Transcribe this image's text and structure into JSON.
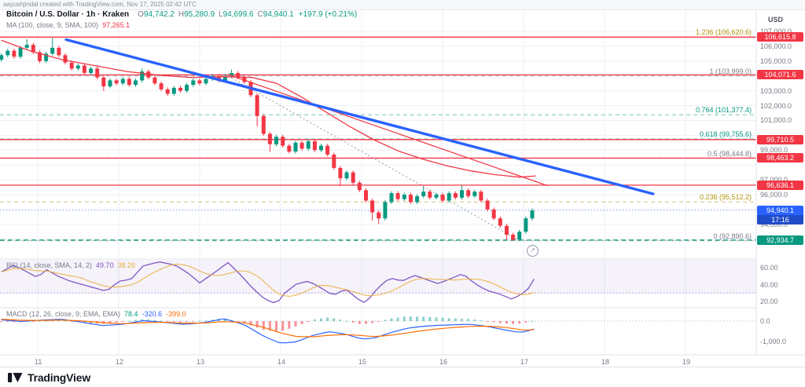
{
  "attribution": {
    "text": "aayushjindal created with TradingView.com, Nov 17, 2025 02:42 UTC"
  },
  "header": {
    "symbol_title": "Bitcoin / U.S. Dollar · 1h · Kraken",
    "ohlc": {
      "o_label": "O",
      "o": "94,742.2",
      "h_label": "H",
      "h": "95,280.9",
      "l_label": "L",
      "l": "94,699.6",
      "c_label": "C",
      "c": "94,940.1",
      "change": "+197.9 (+0.21%)"
    },
    "ma_legend": {
      "label": "MA (100, close, 9, SMA, 100)",
      "value": "97,265.1"
    }
  },
  "panes": {
    "rsi": {
      "legend": "RSI (14, close, SMA, 14, 2)",
      "values": [
        {
          "text": "49.70",
          "color": "#7e57c2"
        },
        {
          "text": "38.26",
          "color": "#edb041"
        }
      ]
    },
    "macd": {
      "legend": "MACD (12, 26, close, 9, EMA, EMA)",
      "values": [
        {
          "text": "78.4",
          "color": "#089981"
        },
        {
          "text": "-320.6",
          "color": "#2962ff"
        },
        {
          "text": "-399.0",
          "color": "#ff6d00"
        }
      ]
    }
  },
  "y_axis": {
    "currency": "USD",
    "labels": [
      {
        "text": "107,000.0",
        "price": 107000
      },
      {
        "text": "106,000.0",
        "price": 106000
      },
      {
        "text": "105,000.0",
        "price": 105000
      },
      {
        "text": "103,000.0",
        "price": 103000
      },
      {
        "text": "102,000.0",
        "price": 102000
      },
      {
        "text": "101,000.0",
        "price": 101000
      },
      {
        "text": "99,000.0",
        "price": 99000
      },
      {
        "text": "97,000.0",
        "price": 97000
      },
      {
        "text": "96,000.0",
        "price": 96000
      },
      {
        "text": "94,000.0",
        "price": 94000
      }
    ]
  },
  "rsi_scale": [
    {
      "text": "60.00",
      "value": 60
    },
    {
      "text": "40.00",
      "value": 40
    },
    {
      "text": "20.00",
      "value": 20
    }
  ],
  "macd_scale": [
    {
      "text": "0.0",
      "value": 0
    },
    {
      "text": "-1,000.0",
      "value": -1000
    }
  ],
  "time_axis": {
    "labels": [
      {
        "text": "11",
        "day": 11
      },
      {
        "text": "12",
        "day": 12
      },
      {
        "text": "13",
        "day": 13
      },
      {
        "text": "14",
        "day": 14
      },
      {
        "text": "15",
        "day": 15
      },
      {
        "text": "16",
        "day": 16
      },
      {
        "text": "17",
        "day": 17
      },
      {
        "text": "18",
        "day": 18
      },
      {
        "text": "19",
        "day": 19
      }
    ]
  },
  "footer": {
    "brand": "TradingView"
  },
  "marker_glyph": "↗",
  "chart_data": {
    "type": "candlestick",
    "title": "Bitcoin / U.S. Dollar · 1h · Kraken",
    "symbol": "BTC/USD",
    "interval": "1h",
    "exchange": "Kraken",
    "last_ohlc": {
      "open": 94742.2,
      "high": 95280.9,
      "low": 94699.6,
      "close": 94940.1,
      "change": 197.9,
      "change_pct": 0.21
    },
    "x_axis_days": [
      11,
      12,
      13,
      14,
      15,
      16,
      17,
      18,
      19
    ],
    "y_range": [
      91700,
      107500
    ],
    "candles": {
      "start_day": 10.55,
      "step_day": 0.079,
      "open_first": 105100,
      "wick_margin": 130,
      "closes": [
        105400,
        105700,
        105300,
        105900,
        106100,
        105600,
        105000,
        105500,
        105900,
        105400,
        104900,
        104500,
        104700,
        104200,
        104500,
        103900,
        103300,
        103700,
        103500,
        103800,
        103400,
        103700,
        104300,
        103900,
        103500,
        103100,
        102800,
        103200,
        103000,
        103400,
        103700,
        103500,
        103800,
        104000,
        103700,
        104000,
        104200,
        103900,
        103600,
        102700,
        101300,
        100100,
        99400,
        99900,
        99300,
        98900,
        99500,
        99100,
        99600,
        99000,
        99300,
        98700,
        97800,
        97100,
        97500,
        96800,
        96300,
        95600,
        94800,
        94400,
        95500,
        96100,
        95700,
        96000,
        95500,
        95900,
        96200,
        95800,
        96000,
        95600,
        96100,
        95800,
        96300,
        95900,
        96200,
        95600,
        95000,
        94400,
        93900,
        93300,
        92960,
        93500,
        94400,
        94940
      ],
      "wick_overrides": {
        "4": {
          "high": 106480
        },
        "8": {
          "high": 106560
        },
        "16": {
          "low": 102980
        },
        "22": {
          "high": 104500
        },
        "36": {
          "high": 104430
        },
        "40": {
          "low": 100600
        },
        "42": {
          "low": 98880
        },
        "53": {
          "low": 96580
        },
        "58": {
          "low": 94250
        },
        "59": {
          "low": 94020
        },
        "66": {
          "high": 96560
        },
        "72": {
          "high": 96600
        },
        "79": {
          "low": 92950
        },
        "80": {
          "low": 92890
        },
        "81": {
          "low": 92900
        }
      },
      "up_color": "#089981",
      "down_color": "#f23645"
    },
    "price_lines": [
      {
        "price": 106615.8,
        "label": "106,615.8",
        "color": "#f23645",
        "style": "solid"
      },
      {
        "price": 104071.6,
        "label": "104,071.6",
        "color": "#f23645",
        "style": "solid"
      },
      {
        "price": 99710.5,
        "label": "99,710.5",
        "color": "#f23645",
        "style": "solid"
      },
      {
        "price": 98463.2,
        "label": "98,463.2",
        "color": "#f23645",
        "style": "solid"
      },
      {
        "price": 96636.1,
        "label": "96,636.1",
        "color": "#f23645",
        "style": "solid"
      },
      {
        "price": 92934.7,
        "label": "92,934.7",
        "color": "#089981",
        "style": "dashed"
      }
    ],
    "last_price": {
      "price": 94940.1,
      "label": "94,940.1",
      "countdown": "17:16",
      "color": "#2962ff"
    },
    "fib_levels": [
      {
        "text": "1.236 (106,620.6)",
        "level": 1.236,
        "price": 106620.6,
        "color": "#b5940a"
      },
      {
        "text": "1 (103,999.0)",
        "level": 1,
        "price": 103999.0,
        "color": "#787b86"
      },
      {
        "text": "0.764 (101,377.4)",
        "level": 0.764,
        "price": 101377.4,
        "color": "#089981"
      },
      {
        "text": "0.618 (99,755.6)",
        "level": 0.618,
        "price": 99755.6,
        "color": "#089981"
      },
      {
        "text": "0.5 (98,444.8)",
        "level": 0.5,
        "price": 98444.8,
        "color": "#787b86"
      },
      {
        "text": "0.236 (95,512.2)",
        "level": 0.236,
        "price": 95512.2,
        "color": "#b5940a"
      },
      {
        "text": "0 (92,890.6)",
        "level": 0,
        "price": 92890.6,
        "color": "#787b86"
      }
    ],
    "fib_baseline": {
      "from": [
        13.35,
        103999.0
      ],
      "to": [
        16.95,
        92890.6
      ]
    },
    "trendline_blue": {
      "from": [
        11.35,
        106450
      ],
      "to": [
        18.6,
        96050
      ],
      "color": "#2962ff"
    },
    "trendline_red": {
      "from": [
        13.35,
        104100
      ],
      "to": [
        17.3,
        96600
      ],
      "color": "#f23645"
    },
    "ma100": [
      [
        10.55,
        106400
      ],
      [
        10.9,
        105700
      ],
      [
        11.3,
        105100
      ],
      [
        11.7,
        104700
      ],
      [
        12.1,
        104300
      ],
      [
        12.5,
        104050
      ],
      [
        12.9,
        103900
      ],
      [
        13.3,
        103950
      ],
      [
        13.65,
        103900
      ],
      [
        13.95,
        103500
      ],
      [
        14.25,
        102600
      ],
      [
        14.55,
        101600
      ],
      [
        14.85,
        100600
      ],
      [
        15.15,
        99700
      ],
      [
        15.45,
        98950
      ],
      [
        15.75,
        98400
      ],
      [
        16.05,
        97950
      ],
      [
        16.35,
        97600
      ],
      [
        16.65,
        97350
      ],
      [
        16.95,
        97180
      ],
      [
        17.15,
        97265
      ]
    ],
    "rsi": {
      "last": 49.7,
      "band": [
        70,
        30
      ],
      "points": [
        [
          10.55,
          55
        ],
        [
          10.7,
          63
        ],
        [
          10.85,
          56
        ],
        [
          11.0,
          48
        ],
        [
          11.1,
          58
        ],
        [
          11.25,
          50
        ],
        [
          11.4,
          44
        ],
        [
          11.55,
          40
        ],
        [
          11.7,
          36
        ],
        [
          11.85,
          32
        ],
        [
          12.0,
          44
        ],
        [
          12.15,
          46
        ],
        [
          12.3,
          62
        ],
        [
          12.5,
          67
        ],
        [
          12.7,
          63
        ],
        [
          12.85,
          54
        ],
        [
          13.0,
          42
        ],
        [
          13.15,
          52
        ],
        [
          13.35,
          66
        ],
        [
          13.5,
          52
        ],
        [
          13.65,
          36
        ],
        [
          13.8,
          23
        ],
        [
          13.95,
          17
        ],
        [
          14.05,
          30
        ],
        [
          14.2,
          41
        ],
        [
          14.35,
          44
        ],
        [
          14.5,
          36
        ],
        [
          14.65,
          27
        ],
        [
          14.8,
          35
        ],
        [
          14.95,
          23
        ],
        [
          15.05,
          18
        ],
        [
          15.2,
          36
        ],
        [
          15.35,
          48
        ],
        [
          15.5,
          44
        ],
        [
          15.65,
          51
        ],
        [
          15.8,
          46
        ],
        [
          15.95,
          41
        ],
        [
          16.1,
          47
        ],
        [
          16.25,
          53
        ],
        [
          16.4,
          41
        ],
        [
          16.55,
          33
        ],
        [
          16.7,
          29
        ],
        [
          16.85,
          23
        ],
        [
          16.95,
          27
        ],
        [
          17.05,
          34
        ],
        [
          17.15,
          49.7
        ]
      ]
    },
    "macd": {
      "last": {
        "hist": 78.4,
        "macd": -320.6,
        "signal": -399.0
      },
      "points": [
        [
          10.55,
          60,
          90
        ],
        [
          10.8,
          -20,
          40
        ],
        [
          11.05,
          50,
          30
        ],
        [
          11.3,
          90,
          50
        ],
        [
          11.55,
          -60,
          10
        ],
        [
          11.8,
          -220,
          -80
        ],
        [
          12.05,
          -160,
          -130
        ],
        [
          12.3,
          20,
          -80
        ],
        [
          12.55,
          -60,
          -60
        ],
        [
          12.8,
          -160,
          -100
        ],
        [
          13.05,
          -80,
          -100
        ],
        [
          13.3,
          120,
          -20
        ],
        [
          13.55,
          -180,
          -80
        ],
        [
          13.8,
          -760,
          -320
        ],
        [
          14.0,
          -1090,
          -580
        ],
        [
          14.2,
          -1010,
          -760
        ],
        [
          14.4,
          -700,
          -770
        ],
        [
          14.6,
          -520,
          -700
        ],
        [
          14.8,
          -640,
          -660
        ],
        [
          15.0,
          -880,
          -710
        ],
        [
          15.15,
          -840,
          -760
        ],
        [
          15.35,
          -580,
          -700
        ],
        [
          15.55,
          -360,
          -590
        ],
        [
          15.75,
          -260,
          -470
        ],
        [
          15.95,
          -210,
          -380
        ],
        [
          16.15,
          -180,
          -310
        ],
        [
          16.35,
          -160,
          -260
        ],
        [
          16.55,
          -260,
          -250
        ],
        [
          16.75,
          -420,
          -300
        ],
        [
          16.9,
          -530,
          -380
        ],
        [
          17.0,
          -540,
          -440
        ],
        [
          17.1,
          -430,
          -430
        ],
        [
          17.18,
          -320.6,
          -399
        ]
      ]
    }
  }
}
